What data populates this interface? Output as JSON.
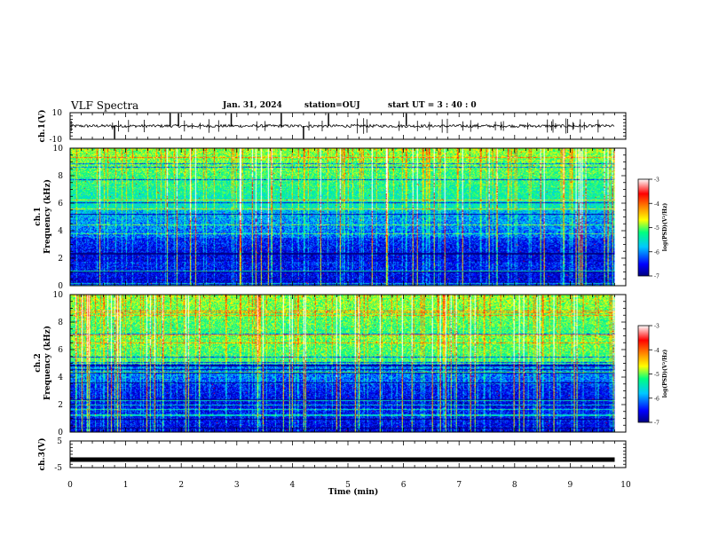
{
  "header": {
    "title": "VLF Spectra",
    "date": "Jan. 31, 2024",
    "station": "station=OUJ",
    "start": "start UT =  3 : 40 : 0"
  },
  "chart_data": [
    {
      "type": "line",
      "panel": "ch1-waveform",
      "ylabel": "ch.1(V)",
      "ylim": [
        -10,
        10
      ],
      "yticks": [
        "10",
        "-10"
      ],
      "xlim": [
        0,
        10
      ],
      "baseline": 0,
      "spikes_at_min": [
        0.8,
        1.8,
        1.95,
        2.9,
        3.8,
        4.2,
        4.65,
        6.05
      ]
    },
    {
      "type": "heatmap",
      "panel": "ch1-spectrogram",
      "ylabel": "ch.1\nFrequency (kHz)",
      "ylim": [
        0,
        10
      ],
      "yticks": [
        "0",
        "2",
        "4",
        "6",
        "8",
        "10"
      ],
      "xlim": [
        0,
        10
      ],
      "data_end_min": 9.8,
      "colorbar": {
        "label": "log(PSD)(V²/Hz)",
        "range": [
          -7,
          -3
        ],
        "ticks": [
          "-3",
          "-4",
          "-5",
          "-6",
          "-7"
        ]
      }
    },
    {
      "type": "heatmap",
      "panel": "ch2-spectrogram",
      "ylabel": "ch.2\nFrequency (kHz)",
      "ylim": [
        0,
        10
      ],
      "yticks": [
        "0",
        "2",
        "4",
        "6",
        "8",
        "10"
      ],
      "xlim": [
        0,
        10
      ],
      "data_end_min": 9.8,
      "colorbar": {
        "label": "log(PSD)(V²/Hz)",
        "range": [
          -7,
          -3
        ],
        "ticks": [
          "-3",
          "-4",
          "-5",
          "-6",
          "-7"
        ]
      }
    },
    {
      "type": "line",
      "panel": "ch3-waveform",
      "ylabel": "ch.3(V)",
      "ylim": [
        -5,
        5
      ],
      "yticks": [
        "5",
        "-5"
      ],
      "xlim": [
        0,
        10
      ],
      "baseline": -2
    }
  ],
  "xaxis": {
    "label": "Time (min)",
    "ticks": [
      "0",
      "1",
      "2",
      "3",
      "4",
      "5",
      "6",
      "7",
      "8",
      "9",
      "10"
    ]
  },
  "colors": {
    "colormap": [
      "#000080",
      "#0000ff",
      "#00c8ff",
      "#00ff80",
      "#ffff00",
      "#ff8000",
      "#ff0000",
      "#ffffff"
    ],
    "axis": "#000000",
    "trace": "#000000"
  }
}
